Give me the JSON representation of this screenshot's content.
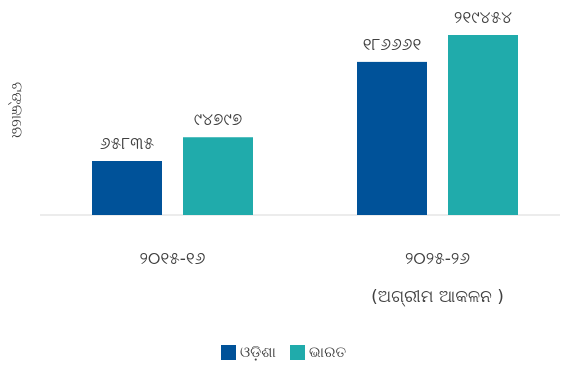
{
  "chart_data": {
    "type": "bar",
    "ylabel": "ଟଙ୍କାରେ",
    "categories": [
      {
        "line1": "୨୦୧୫-୧୬",
        "line2": ""
      },
      {
        "line1": "୨୦୨୫-୨୬",
        "line2": "(ଅଗ୍ରୀମ ଆକଳନ )"
      }
    ],
    "series": [
      {
        "name": "ଓଡ଼ିଶା",
        "color": "#005299",
        "values": [
          65835,
          186661
        ],
        "labels": [
          "୬୫୮୩୫",
          "୧୮୬୬୬୧"
        ]
      },
      {
        "name": "ଭାରତ",
        "color": "#20ABAB",
        "values": [
          94797,
          219454
        ],
        "labels": [
          "୯୪୭୯୭",
          "୨୧୯୪୫୪"
        ]
      }
    ],
    "ylim": [
      0,
      219454
    ],
    "grid": false,
    "legend_position": "bottom"
  }
}
